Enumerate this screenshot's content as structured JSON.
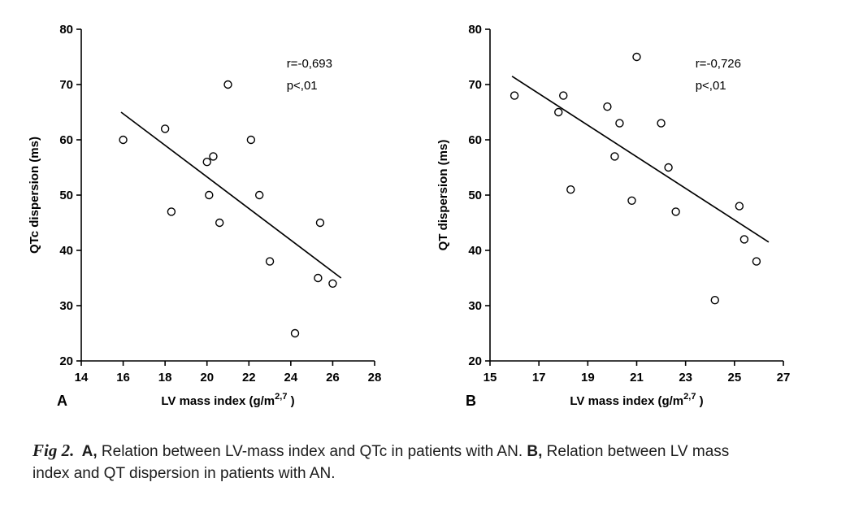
{
  "colors": {
    "ink": "#000000",
    "background": "#ffffff"
  },
  "chart_data": [
    {
      "type": "scatter",
      "panel_label": "A",
      "ylabel": "QTc dispersion (ms)",
      "xlabel_prefix": "LV mass index (g/m",
      "xlabel_sup": "2,7",
      "xlabel_suffix": " )",
      "xlim": [
        14,
        28
      ],
      "ylim": [
        20,
        80
      ],
      "xticks": [
        14,
        16,
        18,
        20,
        22,
        24,
        26,
        28
      ],
      "yticks": [
        20,
        30,
        40,
        50,
        60,
        70,
        80
      ],
      "grid": false,
      "legend": "none",
      "annotations": [
        "r=-0,693",
        "p<,01"
      ],
      "trendline": {
        "x1": 15.9,
        "y1": 65,
        "x2": 26.4,
        "y2": 35
      },
      "points": [
        [
          16,
          60
        ],
        [
          18,
          62
        ],
        [
          18.3,
          47
        ],
        [
          20,
          56
        ],
        [
          20.3,
          57
        ],
        [
          20.1,
          50
        ],
        [
          20.6,
          45
        ],
        [
          21,
          70
        ],
        [
          22.1,
          60
        ],
        [
          22.5,
          50
        ],
        [
          23,
          38
        ],
        [
          24.2,
          25
        ],
        [
          25.3,
          35
        ],
        [
          25.4,
          45
        ],
        [
          26,
          34
        ]
      ]
    },
    {
      "type": "scatter",
      "panel_label": "B",
      "ylabel": "QT dispersion (ms)",
      "xlabel_prefix": "LV mass index (g/m",
      "xlabel_sup": "2,7",
      "xlabel_suffix": " )",
      "xlim": [
        15,
        27
      ],
      "ylim": [
        20,
        80
      ],
      "xticks": [
        15,
        17,
        19,
        21,
        23,
        25,
        27
      ],
      "yticks": [
        20,
        30,
        40,
        50,
        60,
        70,
        80
      ],
      "grid": false,
      "legend": "none",
      "annotations": [
        "r=-0,726",
        "p<,01"
      ],
      "trendline": {
        "x1": 15.9,
        "y1": 71.5,
        "x2": 26.4,
        "y2": 41.5
      },
      "points": [
        [
          16,
          68
        ],
        [
          17.8,
          65
        ],
        [
          18,
          68
        ],
        [
          18.3,
          51
        ],
        [
          19.8,
          66
        ],
        [
          20.1,
          57
        ],
        [
          20.3,
          63
        ],
        [
          21,
          75
        ],
        [
          20.8,
          49
        ],
        [
          22,
          63
        ],
        [
          22.3,
          55
        ],
        [
          22.6,
          47
        ],
        [
          24.2,
          31
        ],
        [
          25.2,
          48
        ],
        [
          25.4,
          42
        ],
        [
          25.9,
          38
        ]
      ]
    }
  ],
  "caption": {
    "fig_label": "Fig 2.",
    "part_a_label": "A,",
    "part_a_text": " Relation between LV-mass index and QTc in patients with AN. ",
    "part_b_label": "B,",
    "part_b_text": " Relation between LV mass index and QT dispersion in patients with AN."
  }
}
